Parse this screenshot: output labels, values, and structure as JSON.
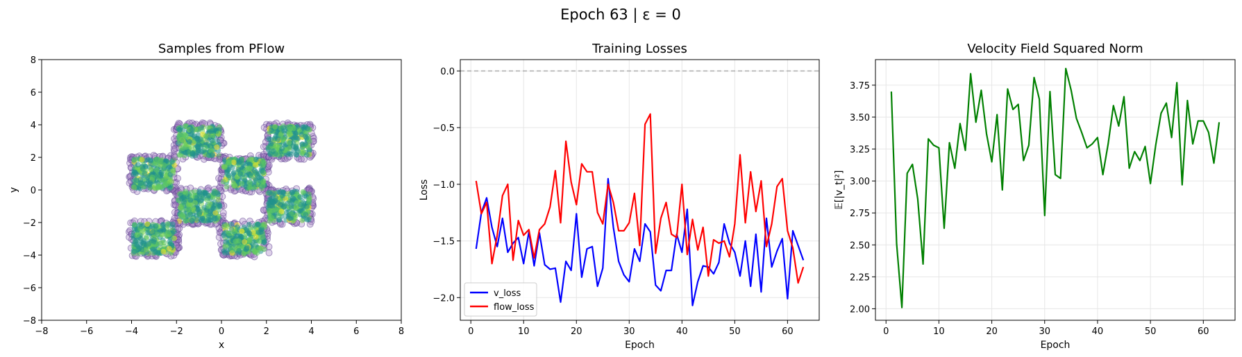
{
  "figure": {
    "suptitle": "Epoch 63 | ε = 0"
  },
  "chart_data": [
    {
      "type": "scatter",
      "title": "Samples from PFlow",
      "xlabel": "x",
      "ylabel": "y",
      "xlim": [
        -8,
        8
      ],
      "ylim": [
        -8,
        8
      ],
      "xticks": [
        -8,
        -6,
        -4,
        -2,
        0,
        2,
        4,
        6,
        8
      ],
      "yticks": [
        -8,
        -6,
        -4,
        -2,
        0,
        2,
        4,
        6,
        8
      ],
      "grid": false,
      "colormap": "viridis",
      "point_color_edge": "#5b3f8f",
      "clusters": [
        {
          "x_range": [
            -4,
            -2
          ],
          "y_range": [
            0,
            2
          ]
        },
        {
          "x_range": [
            -2,
            0
          ],
          "y_range": [
            2,
            4
          ]
        },
        {
          "x_range": [
            0,
            2
          ],
          "y_range": [
            0,
            2
          ]
        },
        {
          "x_range": [
            2,
            4
          ],
          "y_range": [
            2,
            4
          ]
        },
        {
          "x_range": [
            -2,
            0
          ],
          "y_range": [
            -2,
            0
          ]
        },
        {
          "x_range": [
            2,
            4
          ],
          "y_range": [
            -2,
            0
          ]
        },
        {
          "x_range": [
            -4,
            -2
          ],
          "y_range": [
            -4,
            -2
          ]
        },
        {
          "x_range": [
            0,
            2
          ],
          "y_range": [
            -4,
            -2
          ]
        }
      ]
    },
    {
      "type": "line",
      "title": "Training Losses",
      "xlabel": "Epoch",
      "ylabel": "Loss",
      "xlim": [
        -2,
        66
      ],
      "ylim": [
        -2.2,
        0.1
      ],
      "xticks": [
        0,
        10,
        20,
        30,
        40,
        50,
        60
      ],
      "yticks": [
        -2.0,
        -1.5,
        -1.0,
        -0.5,
        0.0
      ],
      "ytick_labels": [
        "−2.0",
        "−1.5",
        "−1.0",
        "−0.5",
        "0.0"
      ],
      "grid": true,
      "legend_position": "lower-left",
      "reference_line": {
        "y": 0.0,
        "style": "dashed",
        "color": "#aaaaaa"
      },
      "x": [
        1,
        2,
        3,
        4,
        5,
        6,
        7,
        8,
        9,
        10,
        11,
        12,
        13,
        14,
        15,
        16,
        17,
        18,
        19,
        20,
        21,
        22,
        23,
        24,
        25,
        26,
        27,
        28,
        29,
        30,
        31,
        32,
        33,
        34,
        35,
        36,
        37,
        38,
        39,
        40,
        41,
        42,
        43,
        44,
        45,
        46,
        47,
        48,
        49,
        50,
        51,
        52,
        53,
        54,
        55,
        56,
        57,
        58,
        59,
        60,
        61,
        62,
        63
      ],
      "series": [
        {
          "name": "v_loss",
          "color": "#0000ff",
          "values": [
            -1.57,
            -1.25,
            -1.12,
            -1.38,
            -1.55,
            -1.3,
            -1.6,
            -1.52,
            -1.47,
            -1.7,
            -1.42,
            -1.72,
            -1.43,
            -1.71,
            -1.75,
            -1.74,
            -2.04,
            -1.68,
            -1.76,
            -1.26,
            -1.82,
            -1.57,
            -1.55,
            -1.9,
            -1.74,
            -0.95,
            -1.38,
            -1.68,
            -1.8,
            -1.86,
            -1.57,
            -1.68,
            -1.35,
            -1.42,
            -1.89,
            -1.94,
            -1.76,
            -1.76,
            -1.44,
            -1.6,
            -1.22,
            -2.07,
            -1.86,
            -1.72,
            -1.73,
            -1.79,
            -1.69,
            -1.35,
            -1.52,
            -1.6,
            -1.81,
            -1.5,
            -1.9,
            -1.44,
            -1.95,
            -1.3,
            -1.73,
            -1.59,
            -1.48,
            -2.01,
            -1.41,
            -1.54,
            -1.67
          ]
        },
        {
          "name": "flow_loss",
          "color": "#ff0000",
          "values": [
            -0.97,
            -1.26,
            -1.16,
            -1.7,
            -1.45,
            -1.1,
            -1.0,
            -1.67,
            -1.32,
            -1.45,
            -1.4,
            -1.65,
            -1.4,
            -1.35,
            -1.2,
            -0.88,
            -1.34,
            -0.62,
            -0.98,
            -1.18,
            -0.82,
            -0.89,
            -0.89,
            -1.25,
            -1.35,
            -1.0,
            -1.16,
            -1.41,
            -1.41,
            -1.34,
            -1.08,
            -1.54,
            -0.47,
            -0.38,
            -1.61,
            -1.3,
            -1.16,
            -1.44,
            -1.47,
            -1.0,
            -1.62,
            -1.31,
            -1.58,
            -1.38,
            -1.81,
            -1.49,
            -1.52,
            -1.5,
            -1.64,
            -1.35,
            -0.74,
            -1.34,
            -0.89,
            -1.24,
            -0.97,
            -1.55,
            -1.35,
            -1.02,
            -0.95,
            -1.41,
            -1.56,
            -1.87,
            -1.73
          ]
        }
      ]
    },
    {
      "type": "line",
      "title": "Velocity Field Squared Norm",
      "xlabel": "Epoch",
      "ylabel": "𝔼[|v_t|²]",
      "xlim": [
        -2,
        66
      ],
      "ylim": [
        1.91,
        3.95
      ],
      "xticks": [
        0,
        10,
        20,
        30,
        40,
        50,
        60
      ],
      "yticks": [
        2.0,
        2.25,
        2.5,
        2.75,
        3.0,
        3.25,
        3.5,
        3.75
      ],
      "ytick_labels": [
        "2.00",
        "2.25",
        "2.50",
        "2.75",
        "3.00",
        "3.25",
        "3.50",
        "3.75"
      ],
      "grid": true,
      "x": [
        1,
        2,
        3,
        4,
        5,
        6,
        7,
        8,
        9,
        10,
        11,
        12,
        13,
        14,
        15,
        16,
        17,
        18,
        19,
        20,
        21,
        22,
        23,
        24,
        25,
        26,
        27,
        28,
        29,
        30,
        31,
        32,
        33,
        34,
        35,
        36,
        37,
        38,
        39,
        40,
        41,
        42,
        43,
        44,
        45,
        46,
        47,
        48,
        49,
        50,
        51,
        52,
        53,
        54,
        55,
        56,
        57,
        58,
        59,
        60,
        61,
        62,
        63
      ],
      "series": [
        {
          "color": "#008000",
          "values": [
            3.7,
            2.51,
            2.01,
            3.06,
            3.13,
            2.86,
            2.35,
            3.33,
            3.28,
            3.26,
            2.63,
            3.3,
            3.1,
            3.45,
            3.24,
            3.84,
            3.46,
            3.71,
            3.37,
            3.15,
            3.52,
            2.93,
            3.72,
            3.56,
            3.6,
            3.16,
            3.28,
            3.81,
            3.64,
            2.73,
            3.7,
            3.05,
            3.02,
            3.88,
            3.71,
            3.49,
            3.38,
            3.26,
            3.29,
            3.34,
            3.05,
            3.29,
            3.59,
            3.43,
            3.66,
            3.1,
            3.23,
            3.16,
            3.27,
            2.98,
            3.28,
            3.53,
            3.61,
            3.34,
            3.77,
            2.97,
            3.63,
            3.29,
            3.47,
            3.47,
            3.38,
            3.14,
            3.46
          ]
        }
      ]
    }
  ]
}
